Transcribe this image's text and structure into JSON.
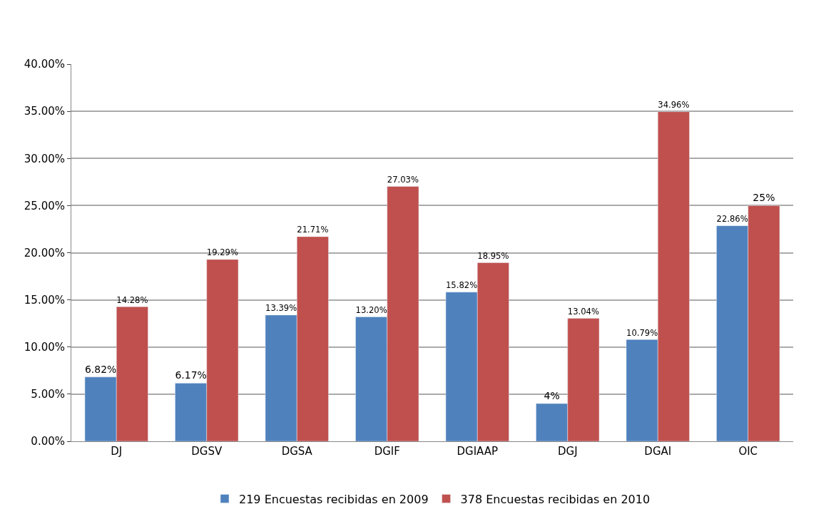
{
  "chart_data": {
    "type": "bar",
    "categories": [
      "DJ",
      "DGSV",
      "DGSA",
      "DGIF",
      "DGIAAP",
      "DGJ",
      "DGAI",
      "OIC"
    ],
    "series": [
      {
        "name": "219 Encuestas recibidas en 2009",
        "color": "#4f81bd",
        "values": [
          6.82,
          6.17,
          13.39,
          13.2,
          15.82,
          4,
          10.79,
          22.86
        ],
        "value_labels": [
          "6.82%",
          "6.17%",
          "13.39%",
          "13.20%",
          "15.82%",
          "4%",
          "10.79%",
          "22.86%"
        ]
      },
      {
        "name": "378 Encuestas recibidas en 2010",
        "color": "#c0504d",
        "values": [
          14.28,
          19.29,
          21.71,
          27.03,
          18.95,
          13.04,
          34.96,
          25
        ],
        "value_labels": [
          "14.28%",
          "19.29%",
          "21.71%",
          "27.03%",
          "18.95%",
          "13.04%",
          "34.96%",
          "25%"
        ]
      }
    ],
    "ylim": [
      0,
      40
    ],
    "yticks": [
      {
        "value": 0,
        "label": "0.00%"
      },
      {
        "value": 5,
        "label": "5.00%"
      },
      {
        "value": 10,
        "label": "10.00%"
      },
      {
        "value": 15,
        "label": "15.00%"
      },
      {
        "value": 20,
        "label": "20.00%"
      },
      {
        "value": 25,
        "label": "25.00%"
      },
      {
        "value": 30,
        "label": "30.00%"
      },
      {
        "value": 35,
        "label": "35.00%"
      },
      {
        "value": 40,
        "label": "40.00%"
      }
    ],
    "grid": "y",
    "legend": "bottom"
  }
}
